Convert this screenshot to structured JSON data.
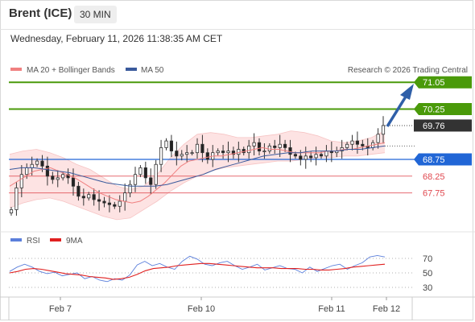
{
  "header": {
    "symbol": "Brent (ICE)",
    "timeframe": "30 MIN",
    "timestamp": "Wednesday, February 11, 2026 11:38:35 AM CET"
  },
  "legend": {
    "ma20_label": "MA 20 + Bollinger Bands",
    "ma50_label": "MA 50",
    "copyright": "Research © 2026 Trading Central"
  },
  "rsi_legend": {
    "rsi_label": "RSI",
    "ma_label": "9MA"
  },
  "colors": {
    "ma20": "#f08080",
    "ma50": "#3a5a9c",
    "green": "#4a9a0a",
    "blue": "#2166d6",
    "red": "#e0484f",
    "current": "#333333",
    "band": "#fde3e3",
    "arrow": "#2f5fa8",
    "rsi": "#5b7fdb",
    "rsi_ma": "#e02020"
  },
  "chart_data": {
    "type": "candlestick",
    "ylim": [
      66.9,
      71.2
    ],
    "x_ticks": [
      "Feb 7",
      "Feb 10",
      "Feb 11",
      "Feb 12"
    ],
    "levels": [
      {
        "label": "71.05",
        "value": 71.05,
        "kind": "resistance"
      },
      {
        "label": "70.25",
        "value": 70.25,
        "kind": "resistance"
      },
      {
        "label": "69.76",
        "value": 69.76,
        "kind": "current"
      },
      {
        "label": "68.75",
        "value": 68.75,
        "kind": "pivot"
      },
      {
        "label": "68.25",
        "value": 68.25,
        "kind": "support"
      },
      {
        "label": "67.75",
        "value": 67.75,
        "kind": "support"
      }
    ],
    "price": [
      67.25,
      67.9,
      68.3,
      68.5,
      68.6,
      68.7,
      68.55,
      68.25,
      68.15,
      68.2,
      68.3,
      68.2,
      67.95,
      67.65,
      67.6,
      67.7,
      67.55,
      67.5,
      67.45,
      67.4,
      67.35,
      67.5,
      67.75,
      68.0,
      68.3,
      68.5,
      68.2,
      68.0,
      68.6,
      69.1,
      69.3,
      69.0,
      68.85,
      68.9,
      68.95,
      68.95,
      69.2,
      68.95,
      68.75,
      68.95,
      69.0,
      68.95,
      69.0,
      68.9,
      69.05,
      68.95,
      69.15,
      69.25,
      69.0,
      69.0,
      69.15,
      69.1,
      69.2,
      69.1,
      68.9,
      68.85,
      68.75,
      68.85,
      68.8,
      68.9,
      68.85,
      69.0,
      68.95,
      69.0,
      69.1,
      69.2,
      69.3,
      69.2,
      69.15,
      69.1,
      69.25,
      69.5,
      69.76
    ],
    "ma20": [
      67.95,
      68.1,
      68.25,
      68.4,
      68.45,
      68.5,
      68.4,
      68.3,
      68.2,
      68.05,
      67.9,
      67.75,
      67.65,
      67.55,
      67.5,
      67.45,
      67.5,
      67.65,
      67.85,
      68.05,
      68.3,
      68.55,
      68.7,
      68.75,
      68.8,
      68.85,
      68.85,
      68.9,
      68.95,
      69.0,
      69.05,
      69.1,
      69.05,
      69.05,
      69.0,
      68.95,
      68.95,
      68.95,
      68.95,
      69.0,
      69.0,
      69.05,
      69.05,
      69.1,
      69.15,
      69.2,
      69.25
    ],
    "ma50": [
      68.45,
      68.5,
      68.5,
      68.45,
      68.4,
      68.35,
      68.25,
      68.15,
      68.05,
      68.0,
      67.95,
      67.95,
      67.95,
      68.0,
      68.1,
      68.2,
      68.3,
      68.45,
      68.55,
      68.65,
      68.75,
      68.85,
      68.9,
      68.95,
      68.95,
      69.0,
      69.0,
      69.0,
      69.05,
      69.05,
      69.1,
      69.15
    ],
    "bb_upper": [
      68.9,
      69.0,
      69.05,
      68.95,
      68.8,
      68.6,
      68.45,
      68.2,
      67.95,
      67.85,
      67.95,
      68.3,
      68.8,
      69.2,
      69.5,
      69.55,
      69.5,
      69.4,
      69.4,
      69.45,
      69.5,
      69.6,
      69.55,
      69.45,
      69.3,
      69.25,
      69.3,
      69.4,
      69.6
    ],
    "bb_lower": [
      67.3,
      67.45,
      67.55,
      67.6,
      67.5,
      67.35,
      67.2,
      67.05,
      66.95,
      67.0,
      67.25,
      67.5,
      67.8,
      68.05,
      68.25,
      68.4,
      68.5,
      68.55,
      68.6,
      68.65,
      68.7,
      68.7,
      68.75,
      68.8,
      68.8,
      68.85,
      68.85,
      68.9,
      68.95
    ],
    "rsi": [
      52,
      58,
      62,
      58,
      52,
      49,
      51,
      46,
      48,
      50,
      42,
      45,
      40,
      38,
      42,
      40,
      47,
      61,
      66,
      60,
      63,
      58,
      55,
      66,
      73,
      69,
      62,
      60,
      64,
      66,
      60,
      55,
      58,
      62,
      54,
      57,
      60,
      56,
      55,
      50,
      58,
      52,
      56,
      60,
      62,
      55,
      60,
      64,
      72,
      74,
      72
    ],
    "rsi_ma": [
      50,
      52,
      55,
      56,
      55,
      53,
      51,
      49,
      48,
      47,
      45,
      44,
      43,
      41,
      42,
      44,
      48,
      53,
      56,
      57,
      58,
      60,
      61,
      62,
      63,
      63,
      62,
      61,
      60,
      59,
      58,
      57,
      57,
      57,
      56,
      56,
      56,
      55,
      55,
      54,
      54,
      55,
      56,
      58,
      59,
      60,
      61,
      62
    ],
    "rsi_ticks": [
      70,
      50,
      30
    ],
    "rsi_ylim": [
      20,
      80
    ]
  }
}
